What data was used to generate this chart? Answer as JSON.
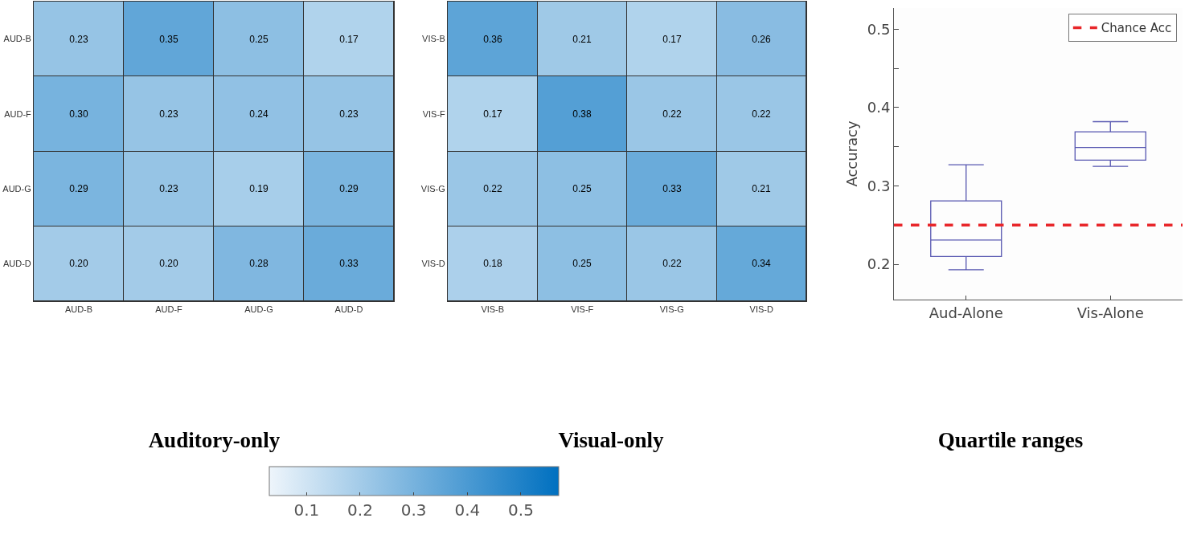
{
  "chart_data": [
    {
      "type": "heatmap",
      "title": "Auditory-only",
      "categories": [
        "AUD-B",
        "AUD-F",
        "AUD-G",
        "AUD-D"
      ],
      "y_categories": [
        "AUD-B",
        "AUD-F",
        "AUD-G",
        "AUD-D"
      ],
      "cells": [
        [
          0.23,
          0.35,
          0.25,
          0.17
        ],
        [
          0.3,
          0.23,
          0.24,
          0.23
        ],
        [
          0.29,
          0.23,
          0.19,
          0.29
        ],
        [
          0.2,
          0.2,
          0.28,
          0.33
        ]
      ],
      "cell_labels": [
        [
          "0.23",
          "0.35",
          "0.25",
          "0.17"
        ],
        [
          "0.30",
          "0.23",
          "0.24",
          "0.23"
        ],
        [
          "0.29",
          "0.23",
          "0.19",
          "0.29"
        ],
        [
          "0.20",
          "0.20",
          "0.28",
          "0.33"
        ]
      ],
      "clim": [
        0.03,
        0.57
      ],
      "cticks": [
        0.1,
        0.2,
        0.3,
        0.4,
        0.5
      ]
    },
    {
      "type": "heatmap",
      "title": "Visual-only",
      "categories": [
        "VIS-B",
        "VIS-F",
        "VIS-G",
        "VIS-D"
      ],
      "y_categories": [
        "VIS-B",
        "VIS-F",
        "VIS-G",
        "VIS-D"
      ],
      "cells": [
        [
          0.36,
          0.21,
          0.17,
          0.26
        ],
        [
          0.17,
          0.38,
          0.22,
          0.22
        ],
        [
          0.22,
          0.25,
          0.33,
          0.21
        ],
        [
          0.18,
          0.25,
          0.22,
          0.34
        ]
      ],
      "cell_labels": [
        [
          "0.36",
          "0.21",
          "0.17",
          "0.26"
        ],
        [
          "0.17",
          "0.38",
          "0.22",
          "0.22"
        ],
        [
          "0.22",
          "0.25",
          "0.33",
          "0.21"
        ],
        [
          "0.18",
          "0.25",
          "0.22",
          "0.34"
        ]
      ]
    },
    {
      "type": "box",
      "title": "Quartile ranges",
      "ylabel": "Accuracy",
      "categories": [
        "Aud-Alone",
        "Vis-Alone"
      ],
      "boxes": [
        {
          "low": 0.193,
          "q1": 0.21,
          "median": 0.231,
          "q3": 0.281,
          "high": 0.327
        },
        {
          "low": 0.325,
          "q1": 0.333,
          "median": 0.349,
          "q3": 0.369,
          "high": 0.382
        }
      ],
      "ylim": [
        0.155,
        0.527
      ],
      "yticks": [
        0.2,
        {
          "value": 0.25,
          "label": null
        },
        0.3,
        {
          "value": 0.35,
          "label": null
        },
        0.4,
        {
          "value": 0.45,
          "label": null
        },
        0.5
      ],
      "ref_lines": [
        {
          "axis": "y",
          "value": 0.25,
          "label": "Chance Acc",
          "color": "#e8262a",
          "line_style": "dashed"
        }
      ],
      "legend": "top right",
      "grid": false
    }
  ]
}
